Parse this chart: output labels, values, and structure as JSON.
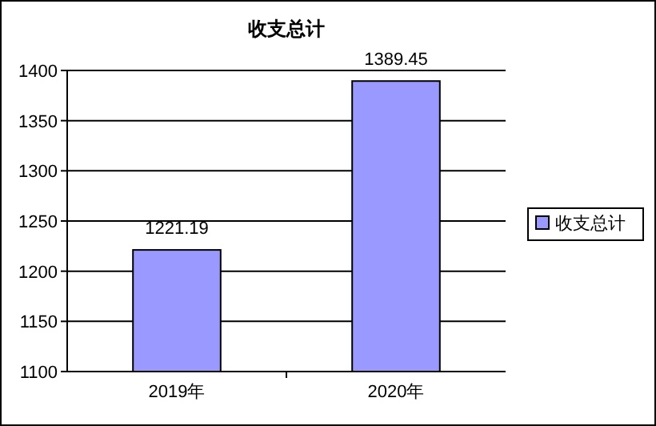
{
  "chart_data": {
    "type": "bar",
    "title": "收支总计",
    "categories": [
      "2019年",
      "2020年"
    ],
    "series": [
      {
        "name": "收支总计",
        "color": "#9999ff",
        "values": [
          1221.19,
          1389.45
        ]
      }
    ],
    "ylim": [
      1100,
      1400
    ],
    "yticks": [
      1100,
      1150,
      1200,
      1250,
      1300,
      1350,
      1400
    ],
    "grid": "y",
    "legend": "right",
    "data_labels": true
  }
}
